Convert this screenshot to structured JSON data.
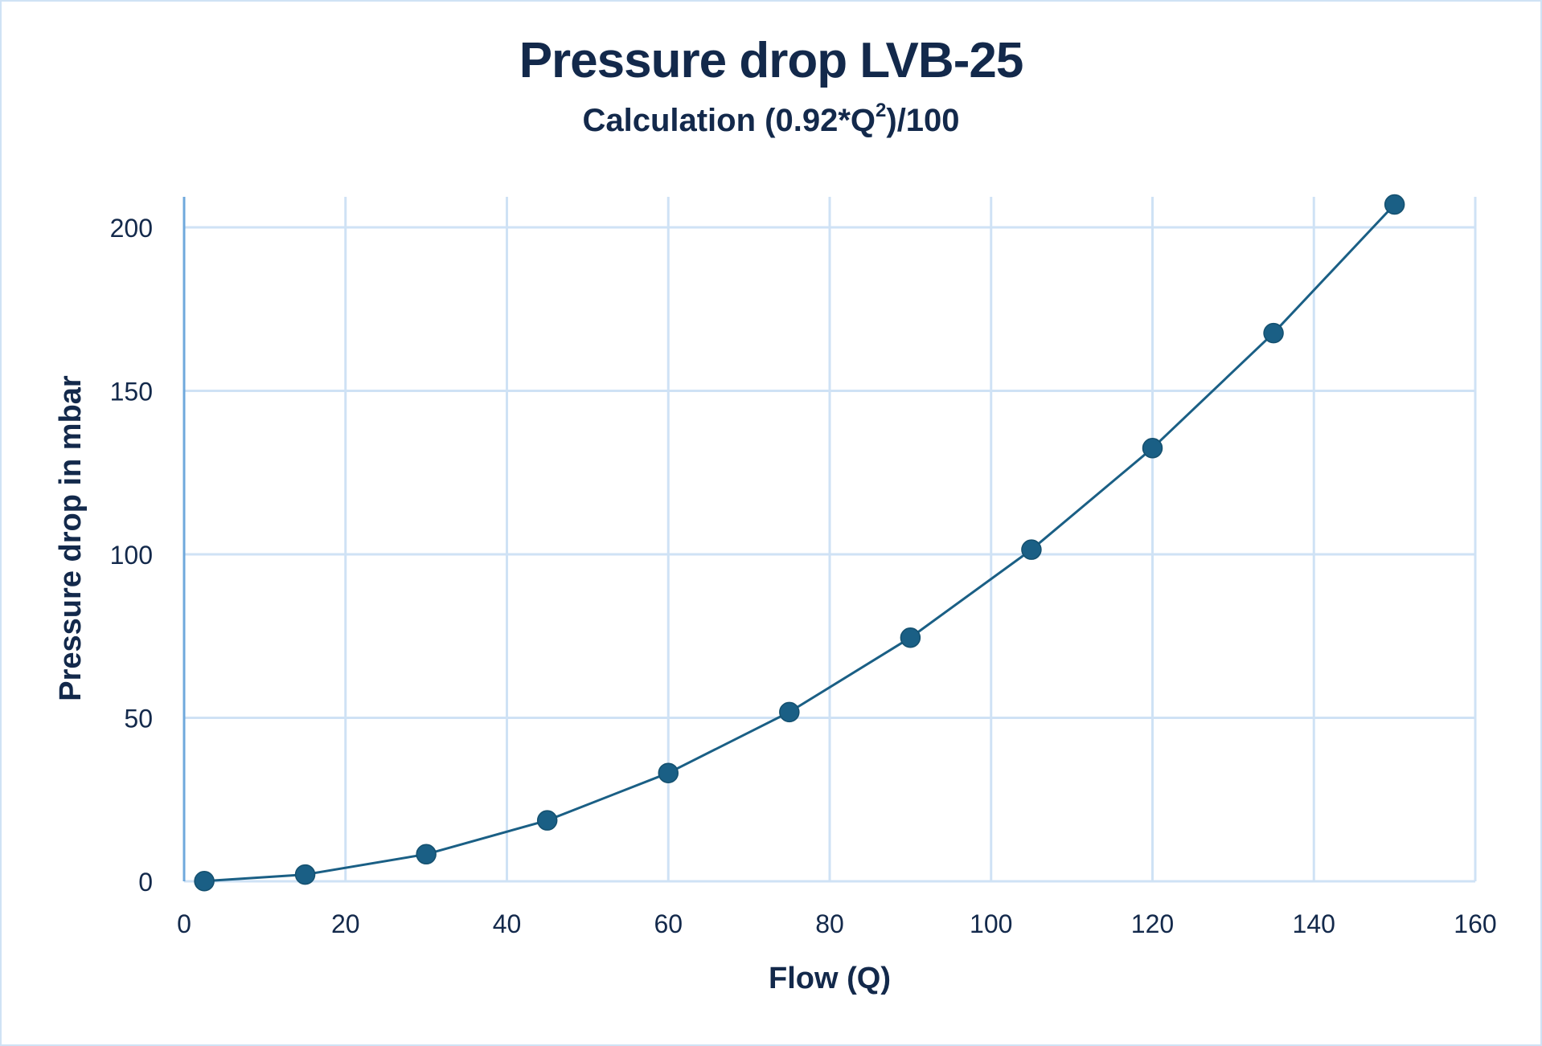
{
  "chart_data": {
    "type": "line",
    "title": "Pressure drop LVB-25",
    "subtitle_prefix": "Calculation (0.92*Q",
    "subtitle_sup": "2",
    "subtitle_suffix": ")/100",
    "xlabel": "Flow (Q)",
    "ylabel": "Pressure drop in mbar",
    "xlim": [
      0,
      160
    ],
    "ylim": [
      0,
      200
    ],
    "x_ticks": [
      0,
      20,
      40,
      60,
      80,
      100,
      120,
      140,
      160
    ],
    "y_ticks": [
      0,
      50,
      100,
      150,
      200
    ],
    "x_tick_labels": [
      "0",
      "20",
      "40",
      "60",
      "80",
      "100",
      "120",
      "140",
      "160"
    ],
    "y_tick_labels": [
      "0",
      "50",
      "100",
      "150",
      "200"
    ],
    "grid": true,
    "legend": "none",
    "series": [
      {
        "name": "Pressure drop",
        "color": "#1a5f85",
        "marker": "circle",
        "x": [
          2.5,
          15,
          30,
          45,
          60,
          75,
          90,
          105,
          120,
          135,
          150
        ],
        "y": [
          0.06,
          2.07,
          8.28,
          18.63,
          33.12,
          51.75,
          74.52,
          101.43,
          132.48,
          167.67,
          207
        ]
      }
    ],
    "colors": {
      "text": "#13294b",
      "grid": "#cfe2f5",
      "y_axis_line": "#6fa8dc",
      "frame": "#cfe2f5"
    }
  }
}
